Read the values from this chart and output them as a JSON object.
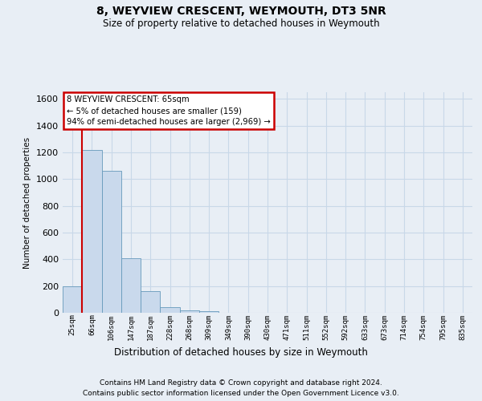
{
  "title": "8, WEYVIEW CRESCENT, WEYMOUTH, DT3 5NR",
  "subtitle": "Size of property relative to detached houses in Weymouth",
  "xlabel": "Distribution of detached houses by size in Weymouth",
  "ylabel": "Number of detached properties",
  "categories": [
    "25sqm",
    "66sqm",
    "106sqm",
    "147sqm",
    "187sqm",
    "228sqm",
    "268sqm",
    "309sqm",
    "349sqm",
    "390sqm",
    "430sqm",
    "471sqm",
    "511sqm",
    "552sqm",
    "592sqm",
    "633sqm",
    "673sqm",
    "714sqm",
    "754sqm",
    "795sqm",
    "835sqm"
  ],
  "values": [
    200,
    1220,
    1060,
    410,
    165,
    45,
    20,
    10,
    0,
    0,
    0,
    0,
    0,
    0,
    0,
    0,
    0,
    0,
    0,
    0,
    0
  ],
  "bar_color": "#c9d9ec",
  "bar_edge_color": "#6699bb",
  "vline_color": "#cc0000",
  "annotation_text": "8 WEYVIEW CRESCENT: 65sqm\n← 5% of detached houses are smaller (159)\n94% of semi-detached houses are larger (2,969) →",
  "annotation_box_facecolor": "#ffffff",
  "annotation_box_edgecolor": "#cc0000",
  "ylim": [
    0,
    1650
  ],
  "yticks": [
    0,
    200,
    400,
    600,
    800,
    1000,
    1200,
    1400,
    1600
  ],
  "grid_color": "#c8d8e8",
  "background_color": "#e8eef5",
  "footer1": "Contains HM Land Registry data © Crown copyright and database right 2024.",
  "footer2": "Contains public sector information licensed under the Open Government Licence v3.0."
}
